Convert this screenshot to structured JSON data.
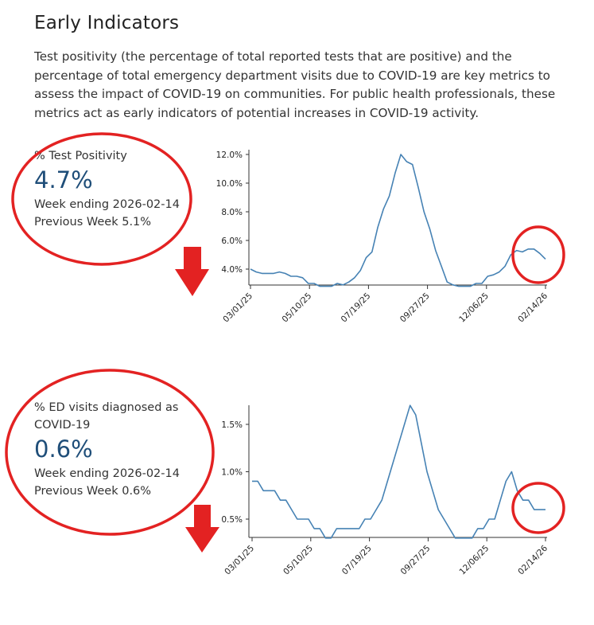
{
  "section": {
    "title": "Early Indicators",
    "description": "Test positivity (the percentage of total reported tests that are positive) and the percentage of total emergency department visits due to COVID-19 are key metrics to assess the impact of COVID-19 on communities. For public health professionals, these metrics act as early indicators of potential increases in COVID-19 activity."
  },
  "metrics": [
    {
      "label": "% Test Positivity",
      "value": "4.7%",
      "week": "Week ending 2026-02-14",
      "previous": "Previous Week 5.1%"
    },
    {
      "label": "% ED visits diagnosed as COVID-19",
      "value": "0.6%",
      "week": "Week ending 2026-02-14",
      "previous": "Previous Week 0.6%"
    }
  ],
  "colors": {
    "line": "#4682b4",
    "value": "#1f4e79",
    "annotation": "#e32222"
  },
  "annotations": [
    "red-circle",
    "down-arrow"
  ],
  "chart_data": [
    {
      "type": "line",
      "x_tick_labels": [
        "03/01/25",
        "05/10/25",
        "07/19/25",
        "09/27/25",
        "12/06/25",
        "02/14/26"
      ],
      "y_tick_labels": [
        "4.0%",
        "6.0%",
        "8.0%",
        "10.0%",
        "12.0%"
      ],
      "y_ticks": [
        4,
        6,
        8,
        10,
        12
      ],
      "ylim": [
        2.8,
        12.0
      ],
      "grid": false,
      "series": [
        {
          "values": [
            4.0,
            3.8,
            3.7,
            3.7,
            3.7,
            3.8,
            3.7,
            3.5,
            3.5,
            3.4,
            3.0,
            3.0,
            2.8,
            2.8,
            2.8,
            3.0,
            2.9,
            3.1,
            3.4,
            3.9,
            4.8,
            5.2,
            6.9,
            8.2,
            9.1,
            10.7,
            12.0,
            11.5,
            11.3,
            9.7,
            8.0,
            6.8,
            5.3,
            4.2,
            3.1,
            2.9,
            2.8,
            2.8,
            2.8,
            3.0,
            3.0,
            3.5,
            3.6,
            3.8,
            4.2,
            5.0,
            5.3,
            5.2,
            5.4,
            5.4,
            5.1,
            4.7
          ]
        }
      ]
    },
    {
      "type": "line",
      "x_tick_labels": [
        "03/01/25",
        "05/10/25",
        "07/19/25",
        "09/27/25",
        "12/06/25",
        "02/14/26"
      ],
      "y_tick_labels": [
        "0.5%",
        "1.0%",
        "1.5%"
      ],
      "y_ticks": [
        0.5,
        1.0,
        1.5
      ],
      "ylim": [
        0.3,
        1.7
      ],
      "grid": false,
      "series": [
        {
          "values": [
            0.9,
            0.9,
            0.8,
            0.8,
            0.8,
            0.7,
            0.7,
            0.6,
            0.5,
            0.5,
            0.5,
            0.4,
            0.4,
            0.3,
            0.3,
            0.4,
            0.4,
            0.4,
            0.4,
            0.4,
            0.5,
            0.5,
            0.6,
            0.7,
            0.9,
            1.1,
            1.3,
            1.5,
            1.7,
            1.6,
            1.3,
            1.0,
            0.8,
            0.6,
            0.5,
            0.4,
            0.3,
            0.3,
            0.3,
            0.3,
            0.4,
            0.4,
            0.5,
            0.5,
            0.7,
            0.9,
            1.0,
            0.8,
            0.7,
            0.7,
            0.6,
            0.6,
            0.6
          ]
        }
      ]
    }
  ]
}
